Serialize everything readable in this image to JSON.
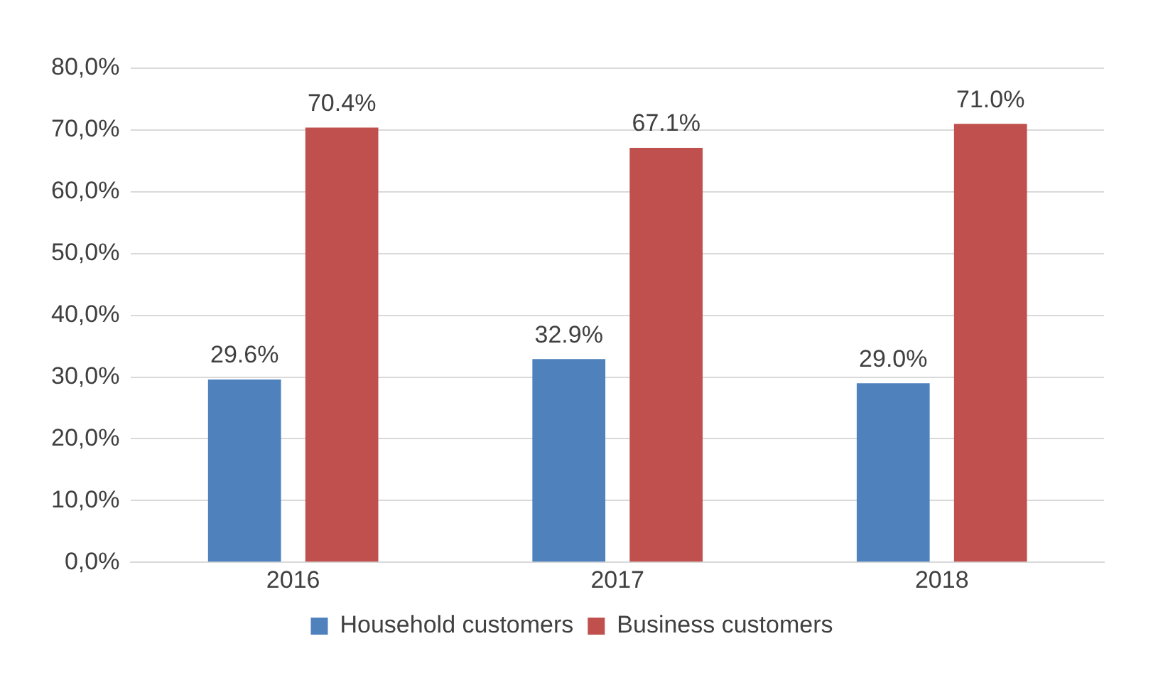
{
  "chart_data": {
    "type": "bar",
    "categories": [
      "2016",
      "2017",
      "2018"
    ],
    "series": [
      {
        "name": "Household customers",
        "color": "#4f81bd",
        "values": [
          29.6,
          32.9,
          29.0
        ],
        "value_labels": [
          "29.6%",
          "32.9%",
          "29.0%"
        ]
      },
      {
        "name": "Business customers",
        "color": "#c0504d",
        "values": [
          70.4,
          67.1,
          71.0
        ],
        "value_labels": [
          "70.4%",
          "67.1%",
          "71.0%"
        ]
      }
    ],
    "ylim": [
      0,
      80
    ],
    "yticks": [
      {
        "value": 0,
        "label": "0,0%"
      },
      {
        "value": 10,
        "label": "10,0%"
      },
      {
        "value": 20,
        "label": "20,0%"
      },
      {
        "value": 30,
        "label": "30,0%"
      },
      {
        "value": 40,
        "label": "40,0%"
      },
      {
        "value": 50,
        "label": "50,0%"
      },
      {
        "value": 60,
        "label": "60,0%"
      },
      {
        "value": 70,
        "label": "70,0%"
      },
      {
        "value": 80,
        "label": "80,0%"
      }
    ],
    "grid": "y",
    "legend": "bottom"
  }
}
